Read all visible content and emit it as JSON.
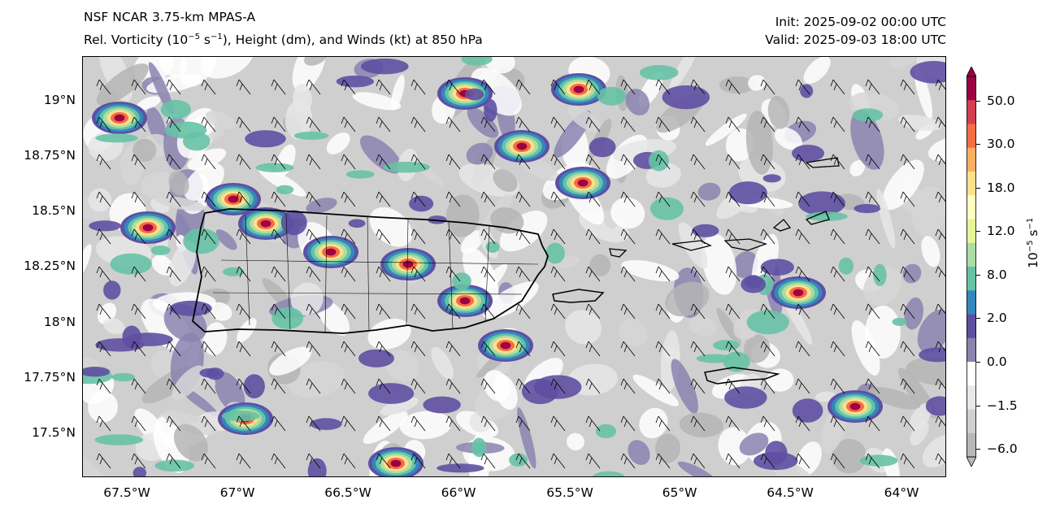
{
  "header": {
    "model": "NSF NCAR 3.75-km MPAS-A",
    "field_prefix": "Rel. Vorticity (10",
    "field_exp": "−5",
    "field_mid": " s",
    "field_exp2": "−1",
    "field_suffix": "), Height (dm), and Winds (kt) at 850 hPa",
    "init": "Init: 2025-09-02 00:00 UTC",
    "valid": "Valid: 2025-09-03 18:00 UTC"
  },
  "map": {
    "lat_ticks": [
      "19°N",
      "18.75°N",
      "18.5°N",
      "18.25°N",
      "18°N",
      "17.75°N",
      "17.5°N"
    ],
    "lon_ticks": [
      "67.5°W",
      "67°W",
      "66.5°W",
      "66°W",
      "65.5°W",
      "65°W",
      "64.5°W",
      "64°W"
    ],
    "lon_range": [
      -67.7,
      -63.8
    ],
    "lat_range": [
      17.3,
      19.2
    ]
  },
  "colorbar": {
    "label_base": "10",
    "label_exp": "−5",
    "label_unit": " s",
    "label_exp2": "−1",
    "tick_labels": [
      "50.0",
      "30.0",
      "18.0",
      "12.0",
      "8.0",
      "2.0",
      "0.0",
      "−1.5",
      "−6.0"
    ],
    "colors": [
      "#9e0142",
      "#d53e4f",
      "#f46d43",
      "#fdae61",
      "#fee08b",
      "#ffffbf",
      "#e6f598",
      "#abdda4",
      "#66c2a5",
      "#3288bd",
      "#5e4fa2",
      "#8b82b0",
      "#ffffff",
      "#e8e8e8",
      "#d0d0d0",
      "#b8b8b8"
    ]
  }
}
